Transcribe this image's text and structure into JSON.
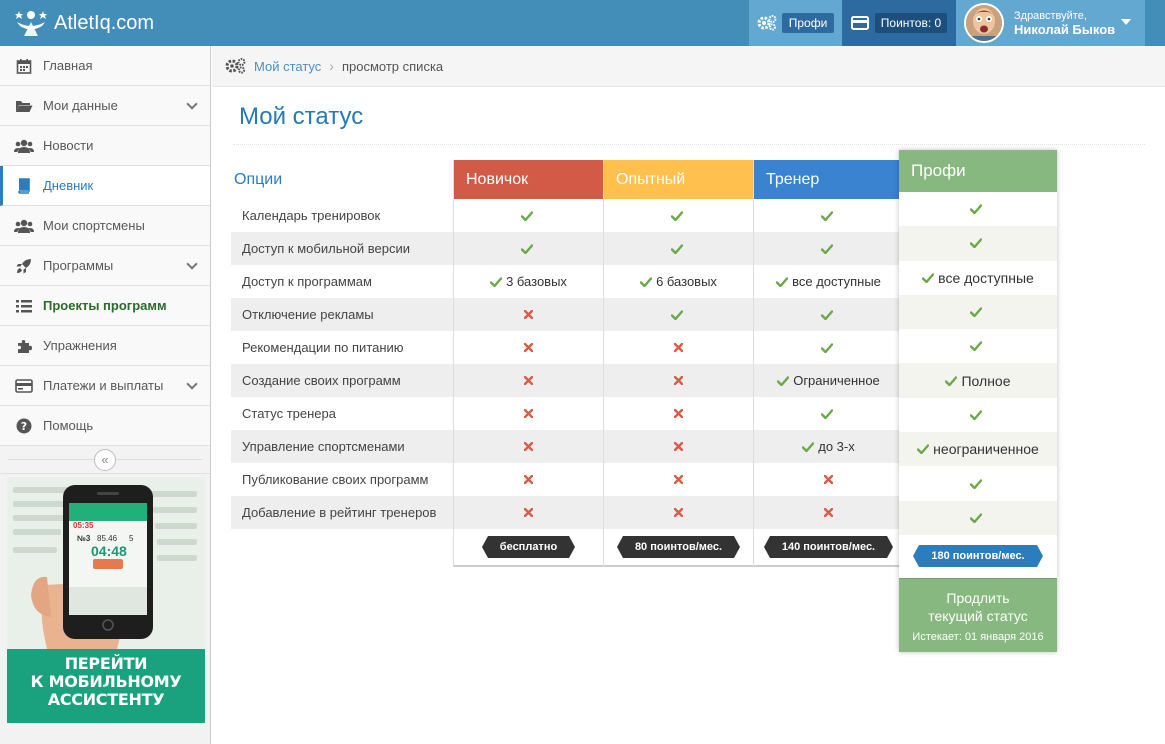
{
  "header": {
    "logo_text": "AtletIq.com",
    "profi_label": "Профи",
    "points_label": "Поинтов: 0",
    "greeting": "Здравствуйте,",
    "user_name": "Николай Быков"
  },
  "sidebar": {
    "items": [
      {
        "label": "Главная",
        "icon": "calendar-icon"
      },
      {
        "label": "Мои данные",
        "icon": "folder-icon",
        "has_submenu": true
      },
      {
        "label": "Новости",
        "icon": "users-icon"
      },
      {
        "label": "Дневник",
        "icon": "book-icon",
        "active": true
      },
      {
        "label": "Мои спортсмены",
        "icon": "users-icon"
      },
      {
        "label": "Программы",
        "icon": "rocket-icon",
        "has_submenu": true
      },
      {
        "label": "Проекты программ",
        "icon": "tasks-icon"
      },
      {
        "label": "Упражнения",
        "icon": "puzzle-icon"
      },
      {
        "label": "Платежи и выплаты",
        "icon": "credit-card-icon",
        "has_submenu": true
      },
      {
        "label": "Помощь",
        "icon": "question-icon"
      }
    ],
    "collapse_icon": "double-chevron-left-icon",
    "promo": {
      "line1": "ПЕРЕЙТИ",
      "line2": "К МОБИЛЬНОМУ",
      "line3": "АССИСТЕНТУ",
      "phone_time": "04:48",
      "phone_stat1": "05:35",
      "phone_stat2": "85.46",
      "phone_stat3": "5",
      "phone_label": "№3"
    }
  },
  "breadcrumb": {
    "link": "Мой статус",
    "current": "просмотр списка"
  },
  "page": {
    "title": "Мой статус"
  },
  "pricing": {
    "options_header": "Опции",
    "options": [
      "Календарь тренировок",
      "Доступ к мобильной версии",
      "Доступ к программам",
      "Отключение рекламы",
      "Рекомендации по питанию",
      "Создание своих программ",
      "Статус тренера",
      "Управление спортсменами",
      "Публикование своих программ",
      "Добавление в рейтинг тренеров"
    ],
    "plans": [
      {
        "name": "Новичок",
        "color": "#d15b47",
        "price": "бесплатно",
        "cells": [
          {
            "mark": "check",
            "text": ""
          },
          {
            "mark": "check",
            "text": ""
          },
          {
            "mark": "check",
            "text": "3 базовых"
          },
          {
            "mark": "cross",
            "text": ""
          },
          {
            "mark": "cross",
            "text": ""
          },
          {
            "mark": "cross",
            "text": ""
          },
          {
            "mark": "cross",
            "text": ""
          },
          {
            "mark": "cross",
            "text": ""
          },
          {
            "mark": "cross",
            "text": ""
          },
          {
            "mark": "cross",
            "text": ""
          }
        ]
      },
      {
        "name": "Опытный",
        "color": "#ffc04e",
        "price": "80 поинтов/мес.",
        "cells": [
          {
            "mark": "check",
            "text": ""
          },
          {
            "mark": "check",
            "text": ""
          },
          {
            "mark": "check",
            "text": "6 базовых"
          },
          {
            "mark": "check",
            "text": ""
          },
          {
            "mark": "cross",
            "text": ""
          },
          {
            "mark": "cross",
            "text": ""
          },
          {
            "mark": "cross",
            "text": ""
          },
          {
            "mark": "cross",
            "text": ""
          },
          {
            "mark": "cross",
            "text": ""
          },
          {
            "mark": "cross",
            "text": ""
          }
        ]
      },
      {
        "name": "Тренер",
        "color": "#3983d0",
        "price": "140 поинтов/мес.",
        "cells": [
          {
            "mark": "check",
            "text": ""
          },
          {
            "mark": "check",
            "text": ""
          },
          {
            "mark": "check",
            "text": "все доступные"
          },
          {
            "mark": "check",
            "text": ""
          },
          {
            "mark": "check",
            "text": ""
          },
          {
            "mark": "check",
            "text": "Ограниченное"
          },
          {
            "mark": "check",
            "text": ""
          },
          {
            "mark": "check",
            "text": "до 3-х"
          },
          {
            "mark": "cross",
            "text": ""
          },
          {
            "mark": "cross",
            "text": ""
          }
        ]
      }
    ],
    "pro_plan": {
      "name": "Профи",
      "color": "#87b87f",
      "price": "180 поинтов/мес.",
      "cells": [
        {
          "mark": "check",
          "text": ""
        },
        {
          "mark": "check",
          "text": ""
        },
        {
          "mark": "check",
          "text": "все доступные"
        },
        {
          "mark": "check",
          "text": ""
        },
        {
          "mark": "check",
          "text": ""
        },
        {
          "mark": "check",
          "text": "Полное"
        },
        {
          "mark": "check",
          "text": ""
        },
        {
          "mark": "check",
          "text": "неограниченное"
        },
        {
          "mark": "check",
          "text": ""
        },
        {
          "mark": "check",
          "text": ""
        }
      ],
      "renew_line1": "Продлить",
      "renew_line2": "текущий статус",
      "expires": "Истекает: 01 января 2016"
    }
  },
  "colors": {
    "header_bg": "#438eb9",
    "check": "#69aa46",
    "cross": "#dd5a43",
    "link": "#2b7dbc"
  }
}
